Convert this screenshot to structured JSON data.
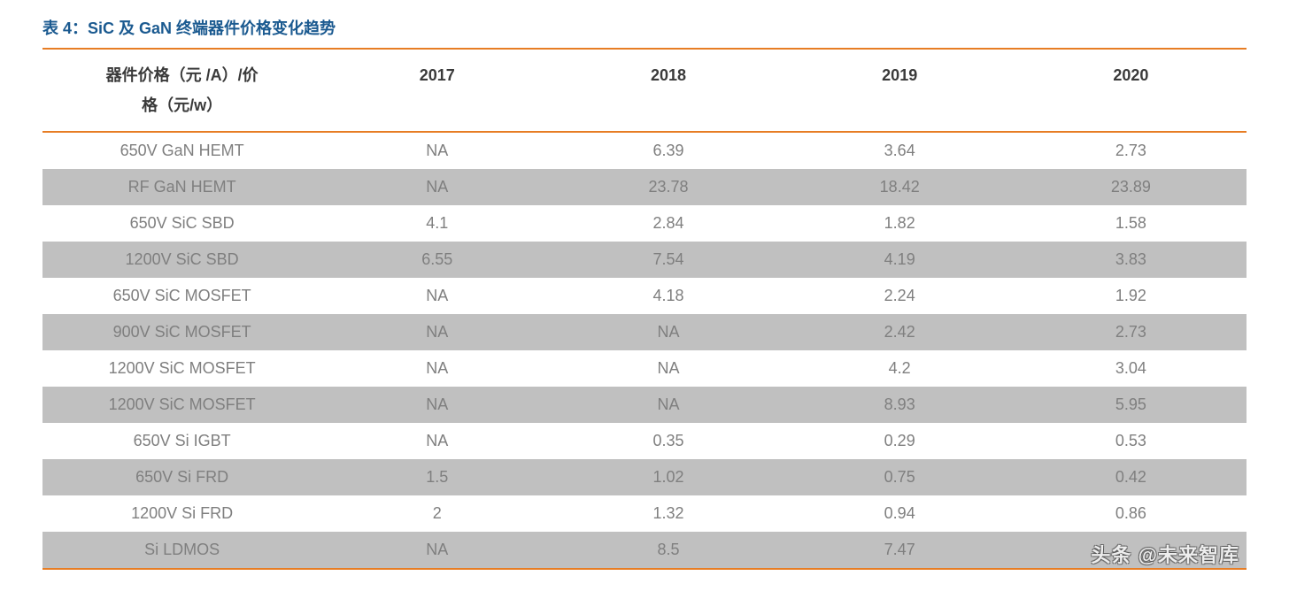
{
  "title": "表 4：SiC 及 GaN 终端器件价格变化趋势",
  "watermark": "头条 @未来智库",
  "table": {
    "type": "table",
    "header_line1": "器件价格（元 /A）/价",
    "header_line2": "格（元/w）",
    "columns": [
      "2017",
      "2018",
      "2019",
      "2020"
    ],
    "rows": [
      {
        "label": "650V GaN HEMT",
        "v": [
          "NA",
          "6.39",
          "3.64",
          "2.73"
        ]
      },
      {
        "label": "RF GaN HEMT",
        "v": [
          "NA",
          "23.78",
          "18.42",
          "23.89"
        ]
      },
      {
        "label": "650V SiC SBD",
        "v": [
          "4.1",
          "2.84",
          "1.82",
          "1.58"
        ]
      },
      {
        "label": "1200V SiC SBD",
        "v": [
          "6.55",
          "7.54",
          "4.19",
          "3.83"
        ]
      },
      {
        "label": "650V SiC MOSFET",
        "v": [
          "NA",
          "4.18",
          "2.24",
          "1.92"
        ]
      },
      {
        "label": "900V SiC MOSFET",
        "v": [
          "NA",
          "NA",
          "2.42",
          "2.73"
        ]
      },
      {
        "label": "1200V SiC MOSFET",
        "v": [
          "NA",
          "NA",
          "4.2",
          "3.04"
        ]
      },
      {
        "label": "1200V SiC MOSFET",
        "v": [
          "NA",
          "NA",
          "8.93",
          "5.95"
        ]
      },
      {
        "label": "650V Si IGBT",
        "v": [
          "NA",
          "0.35",
          "0.29",
          "0.53"
        ]
      },
      {
        "label": "650V Si FRD",
        "v": [
          "1.5",
          "1.02",
          "0.75",
          "0.42"
        ]
      },
      {
        "label": "1200V Si FRD",
        "v": [
          "2",
          "1.32",
          "0.94",
          "0.86"
        ]
      },
      {
        "label": "Si LDMOS",
        "v": [
          "NA",
          "8.5",
          "7.47",
          ""
        ]
      }
    ],
    "colors": {
      "title": "#1b5a90",
      "rule": "#e77d24",
      "cell_text": "#7f7f7f",
      "header_text": "#3a3a3a",
      "alt_row_bg": "#c0c0c0",
      "bg": "#ffffff"
    },
    "font_size_header": 18,
    "font_size_cell": 18,
    "col_widths_pct": [
      22,
      19.5,
      19.5,
      19.5,
      19.5
    ]
  }
}
